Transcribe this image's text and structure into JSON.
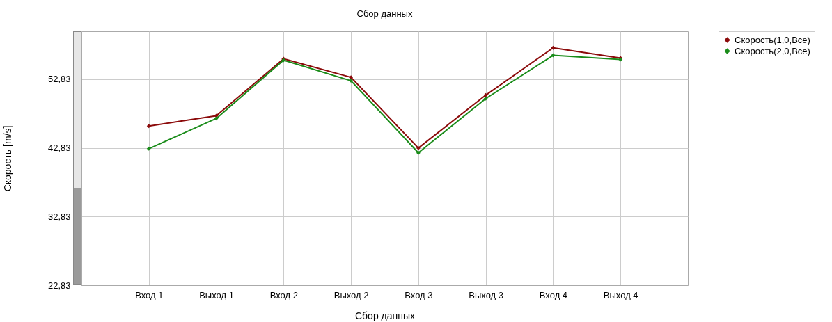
{
  "chart_data": {
    "type": "line",
    "title": "Сбор данных",
    "xlabel": "Сбор данных",
    "ylabel": "Скорость [m/s]",
    "categories": [
      "Вход 1",
      "Выход 1",
      "Вход 2",
      "Выход 2",
      "Вход 3",
      "Выход 3",
      "Вход 4",
      "Выход 4"
    ],
    "series": [
      {
        "name": "Скорость(1,0,Все)",
        "color": "#8b0a0a",
        "values": [
          46.0,
          47.5,
          55.8,
          53.1,
          42.8,
          50.5,
          57.4,
          55.9
        ]
      },
      {
        "name": "Скорость(2,0,Все)",
        "color": "#1a8c1a",
        "values": [
          42.7,
          47.1,
          55.6,
          52.6,
          42.1,
          50.0,
          56.3,
          55.7
        ]
      }
    ],
    "ylim": [
      22.83,
      59.8
    ],
    "yticks": [
      {
        "value": 22.83,
        "label": "22,83"
      },
      {
        "value": 32.83,
        "label": "32,83"
      },
      {
        "value": 42.83,
        "label": "42,83"
      },
      {
        "value": 52.83,
        "label": "52,83"
      }
    ],
    "grid": true,
    "legend": "top right",
    "marker": "diamond",
    "line_style": "solid"
  }
}
